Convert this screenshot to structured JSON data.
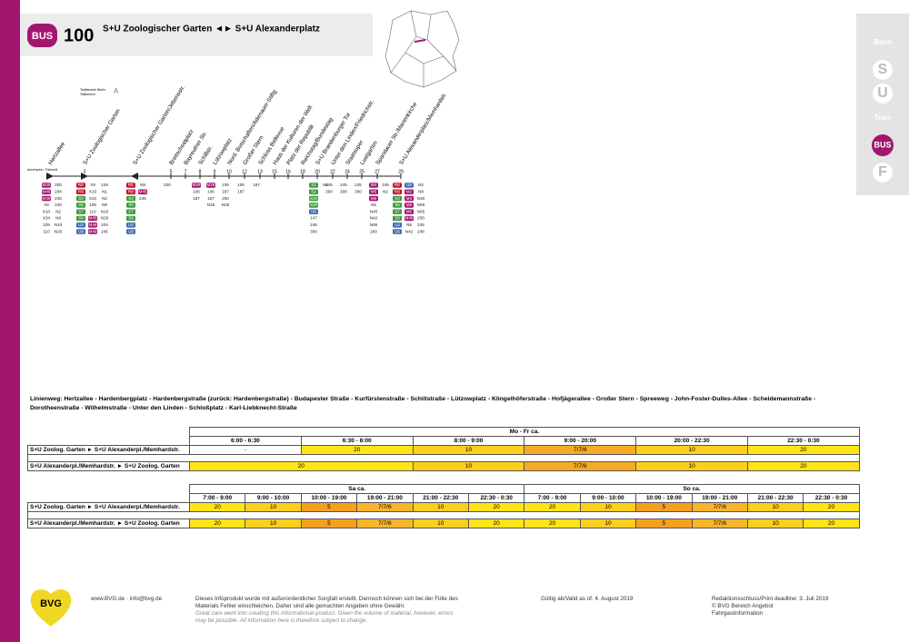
{
  "header": {
    "mode": "BUS",
    "line": "100",
    "title": "S+U Zoologischer Garten ◄► S+U Alexanderplatz"
  },
  "side_icons": [
    "Bahn",
    "S",
    "U",
    "Tram",
    "BUS",
    "F"
  ],
  "tariff": {
    "label": "Tarifbereich Berlin",
    "sublabel": "Teilbereich",
    "zone": "A"
  },
  "travel_time_label": "durchschn. Fahrzeit",
  "stops": [
    {
      "name": "Hertzallee",
      "minutes": null,
      "lines": [
        "M45",
        "M46",
        "M49",
        "X9",
        "X10",
        "X34",
        "109",
        "110",
        "200",
        "204",
        "245",
        "249",
        "N2",
        "N9",
        "N10",
        "N26"
      ]
    },
    {
      "name": "S+U Zoologischer Garten",
      "minutes": 3,
      "lines": [
        "RE",
        "RB",
        "S3",
        "S5",
        "S7",
        "S9",
        "U2",
        "U9",
        "X9",
        "X10",
        "X34",
        "109",
        "110",
        "M45",
        "M46",
        "M49",
        "249",
        "N1",
        "N2",
        "N9",
        "N10",
        "N26",
        "204",
        "245"
      ]
    },
    {
      "name": "S+U Zoologischer Garten/Jebensstr.",
      "minutes": null,
      "lines": [
        "RE",
        "RB",
        "S3",
        "S5",
        "S7",
        "S9",
        "U2",
        "U9",
        "N9",
        "M45",
        "245"
      ]
    },
    {
      "name": "Breitscheidplatz",
      "minutes": 5,
      "lines": [
        "200"
      ]
    },
    {
      "name": "Bayreuther Str.",
      "minutes": 7,
      "lines": []
    },
    {
      "name": "Schillstr.",
      "minutes": 8,
      "lines": [
        "M29",
        "106",
        "187"
      ]
    },
    {
      "name": "Lützowplatz",
      "minutes": 9,
      "lines": [
        "M29",
        "106",
        "187",
        "N26"
      ]
    },
    {
      "name": "Nord. Botschaften/Adenauer-Stiftg",
      "minutes": 10,
      "lines": [
        "106",
        "187",
        "200",
        "N26"
      ]
    },
    {
      "name": "Großer Stern",
      "minutes": 12,
      "lines": [
        "106",
        "187"
      ]
    },
    {
      "name": "Schloss Bellevue",
      "minutes": 13,
      "lines": [
        "187"
      ]
    },
    {
      "name": "Haus der Kulturen der Welt",
      "minutes": 15,
      "lines": []
    },
    {
      "name": "Platz der Republik",
      "minutes": 16,
      "lines": []
    },
    {
      "name": "Reichstag/Bundestag",
      "minutes": 18,
      "lines": []
    },
    {
      "name": "S+U Brandenburger Tor",
      "minutes": 20,
      "lines": [
        "S1",
        "S2",
        "S25",
        "S26",
        "U5",
        "147",
        "245",
        "300",
        "N6"
      ]
    },
    {
      "name": "Unter den Linden/Friedrichstr.",
      "minutes": 22,
      "lines": [
        "245",
        "300"
      ]
    },
    {
      "name": "Staatsoper",
      "minutes": 24,
      "lines": [
        "245",
        "300"
      ]
    },
    {
      "name": "Lustgarten",
      "minutes": 25,
      "lines": [
        "245",
        "300"
      ]
    },
    {
      "name": "Spandauer Str./Marienkirche",
      "minutes": 27,
      "lines": [
        "M4",
        "M5",
        "M6",
        "N5",
        "N40",
        "N42",
        "N65",
        "200",
        "245",
        "N2"
      ]
    },
    {
      "name": "S+U Alexanderplatz/Memhardstr.",
      "minutes": 29,
      "lines": [
        "RE",
        "RB",
        "S3",
        "S5",
        "S7",
        "S9",
        "U2",
        "U5",
        "U8",
        "M2",
        "M4",
        "M5",
        "M6",
        "M48",
        "N5",
        "N42",
        "N2",
        "N8",
        "N40",
        "N60",
        "N65",
        "200",
        "245",
        "248"
      ]
    }
  ],
  "route_description": "Linienweg: Hertzallee - Hardenbergplatz - Hardenbergstraße (zurück: Hardenbergstraße) - Budapester Straße - Kurfürstenstraße - Schillstraße - Lützowplatz - Klingelhöferstraße - Hofjägerallee - Großer Stern - Spreeweg - John-Foster-Dulles-Allee - Scheidemannstraße - Dorotheenstraße - Wilhelmstraße - Unter den Linden - Schloßplatz - Karl-Liebknecht-Straße",
  "timetable_weekday": {
    "periods": [
      "Mo - Fr ca."
    ],
    "columns": [
      "6:00 - 6:30",
      "6:30 - 8:00",
      "8:00 - 9:00",
      "9:00 - 20:00",
      "20:00 - 22:30",
      "22:30 - 0:30"
    ],
    "rows": [
      {
        "direction": "S+U Zoolog. Garten ► S+U Alexanderpl./Memhardstr.",
        "cells": [
          {
            "text": "-",
            "color": "#ffffff"
          },
          {
            "text": "20",
            "color": "#ffe517"
          },
          {
            "text": "10",
            "color": "#fccf1e"
          },
          {
            "text": "7/7/6",
            "color": "#f7ab25"
          },
          {
            "text": "10",
            "color": "#fccf1e"
          },
          {
            "text": "20",
            "color": "#ffe517"
          }
        ]
      },
      {
        "direction": "S+U Alexanderpl./Memhardstr. ► S+U Zoolog. Garten",
        "cells": [
          {
            "text": "20",
            "color": "#ffe517"
          },
          {
            "text": "10",
            "color": "#fccf1e"
          },
          {
            "text": "7/7/6",
            "color": "#f7ab25"
          },
          {
            "text": "10",
            "color": "#fccf1e"
          },
          {
            "text": "20",
            "color": "#ffe517"
          }
        ]
      }
    ]
  },
  "timetable_weekend": {
    "periods": [
      "Sa ca.",
      "So ca."
    ],
    "columns": [
      "7:00 - 9:00",
      "9:00 - 10:00",
      "10:00 - 19:00",
      "19:00 - 21:00",
      "21:00 - 22:30",
      "22:30 - 0:30",
      "7:00 - 9:00",
      "9:00 - 10:00",
      "10:00 - 19:00",
      "19:00 - 21:00",
      "21:00 - 22:30",
      "22:30 - 0:30"
    ],
    "rows": [
      {
        "direction": "S+U Zoolog. Garten ► S+U Alexanderpl./Memhardstr.",
        "cells": [
          {
            "text": "20",
            "color": "#ffe517"
          },
          {
            "text": "10",
            "color": "#fccf1e"
          },
          {
            "text": "5",
            "color": "#f5a020"
          },
          {
            "text": "7/7/6",
            "color": "#f9b52c"
          },
          {
            "text": "10",
            "color": "#fccf1e"
          },
          {
            "text": "20",
            "color": "#ffe517"
          },
          {
            "text": "20",
            "color": "#ffe517"
          },
          {
            "text": "10",
            "color": "#fccf1e"
          },
          {
            "text": "5",
            "color": "#f5a020"
          },
          {
            "text": "7/7/6",
            "color": "#f9b52c"
          },
          {
            "text": "10",
            "color": "#fccf1e"
          },
          {
            "text": "20",
            "color": "#ffe517"
          }
        ]
      },
      {
        "direction": "S+U Alexanderpl./Memhardstr. ► S+U Zoolog. Garten",
        "cells": [
          {
            "text": "20",
            "color": "#ffe517"
          },
          {
            "text": "10",
            "color": "#fccf1e"
          },
          {
            "text": "5",
            "color": "#f5a020"
          },
          {
            "text": "7/7/6",
            "color": "#f9b52c"
          },
          {
            "text": "10",
            "color": "#fccf1e"
          },
          {
            "text": "20",
            "color": "#ffe517"
          },
          {
            "text": "20",
            "color": "#ffe517"
          },
          {
            "text": "10",
            "color": "#fccf1e"
          },
          {
            "text": "5",
            "color": "#f5a020"
          },
          {
            "text": "7/7/6",
            "color": "#f9b52c"
          },
          {
            "text": "10",
            "color": "#fccf1e"
          },
          {
            "text": "20",
            "color": "#ffe517"
          }
        ]
      }
    ]
  },
  "footer": {
    "logo": "BVG",
    "contact": "www.BVG.de · info@bvg.de",
    "disclaimer_de": [
      "Dieses Infoprodukt wurde mit außerordentlicher Sorgfalt erstellt. Dennoch können sich bei der Fülle des",
      "Materials Fehler einschleichen. Daher sind alle gemachten Angaben ohne Gewähr."
    ],
    "disclaimer_en": [
      "Great care went into creating this informational product. Given the volume of material, however, errors",
      "may be possible. All information here is therefore subject to change."
    ],
    "valid": "Gültig ab/Valid as of: 4. August 2019",
    "deadline": "Redaktionsschluss/Print deadline: 3. Juli 2019",
    "copyright": "© BVG Bereich Angebot",
    "department": "Fahrgastinformation"
  }
}
